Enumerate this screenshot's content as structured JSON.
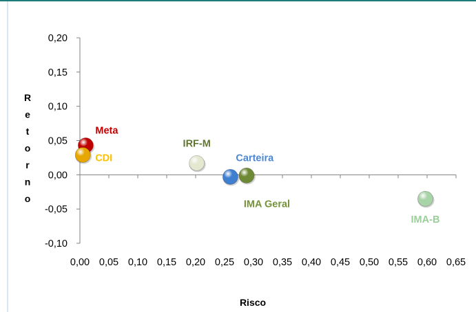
{
  "chart_data": {
    "type": "scatter",
    "title": "",
    "xlabel": "Risco",
    "ylabel": "Retorno",
    "xlim": [
      0,
      0.65
    ],
    "ylim": [
      -0.1,
      0.2
    ],
    "x_ticks": [
      "0,00",
      "0,05",
      "0,10",
      "0,15",
      "0,20",
      "0,25",
      "0,30",
      "0,35",
      "0,40",
      "0,45",
      "0,50",
      "0,55",
      "0,60",
      "0,65"
    ],
    "y_ticks": [
      "0,20",
      "0,15",
      "0,10",
      "0,05",
      "0,00",
      "-0,05",
      "-0,10"
    ],
    "grid": false,
    "legend": "none",
    "points": [
      {
        "label": "Meta",
        "x": 0.01,
        "y": 0.043,
        "color": "#c00000",
        "label_color": "#c00000"
      },
      {
        "label": "CDI",
        "x": 0.005,
        "y": 0.029,
        "color": "#e7a700",
        "label_color": "#ffc000"
      },
      {
        "label": "IRF-M",
        "x": 0.202,
        "y": 0.017,
        "color": "#e3e8cf",
        "label_color": "#5f7530"
      },
      {
        "label": "Carteira",
        "x": 0.26,
        "y": -0.003,
        "color": "#3f7fd0",
        "label_color": "#4a86d4"
      },
      {
        "label": "IMA Geral",
        "x": 0.288,
        "y": -0.001,
        "color": "#6f8a35",
        "label_color": "#76923c"
      },
      {
        "label": "IMA-B",
        "x": 0.597,
        "y": -0.035,
        "color": "#a9d4a7",
        "label_color": "#9bcf9a"
      }
    ],
    "frame_color": "#1f7a7a"
  }
}
